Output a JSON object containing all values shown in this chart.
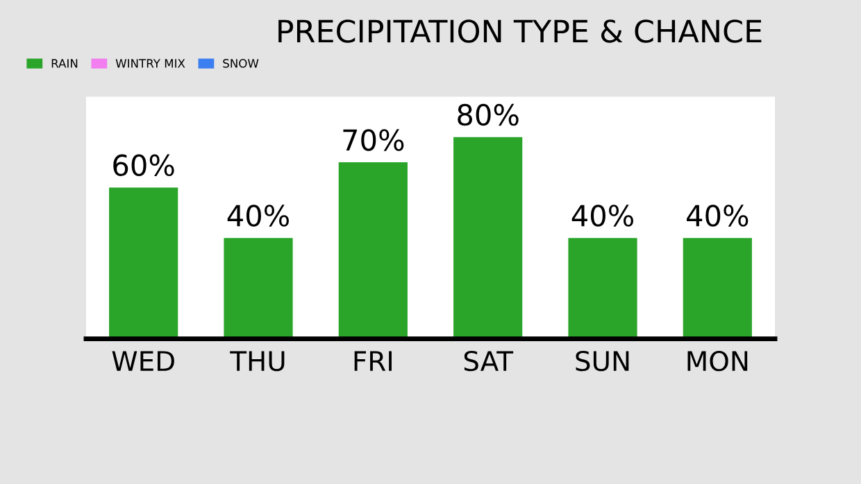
{
  "chart_data": {
    "type": "bar",
    "title": "PRECIPITATION TYPE & CHANCE",
    "categories": [
      "WED",
      "THU",
      "FRI",
      "SAT",
      "SUN",
      "MON"
    ],
    "series": [
      {
        "name": "RAIN",
        "color": "#2aa52a",
        "values": [
          60,
          40,
          70,
          80,
          40,
          40
        ],
        "value_labels": [
          "60%",
          "40%",
          "70%",
          "80%",
          "40%",
          "40%"
        ]
      },
      {
        "name": "WINTRY MIX",
        "color": "#f27ef0",
        "values": [
          null,
          null,
          null,
          null,
          null,
          null
        ]
      },
      {
        "name": "SNOW",
        "color": "#3b7ff0",
        "values": [
          null,
          null,
          null,
          null,
          null,
          null
        ]
      }
    ],
    "legend": "top left",
    "grid": false,
    "tick_labels": "x"
  }
}
